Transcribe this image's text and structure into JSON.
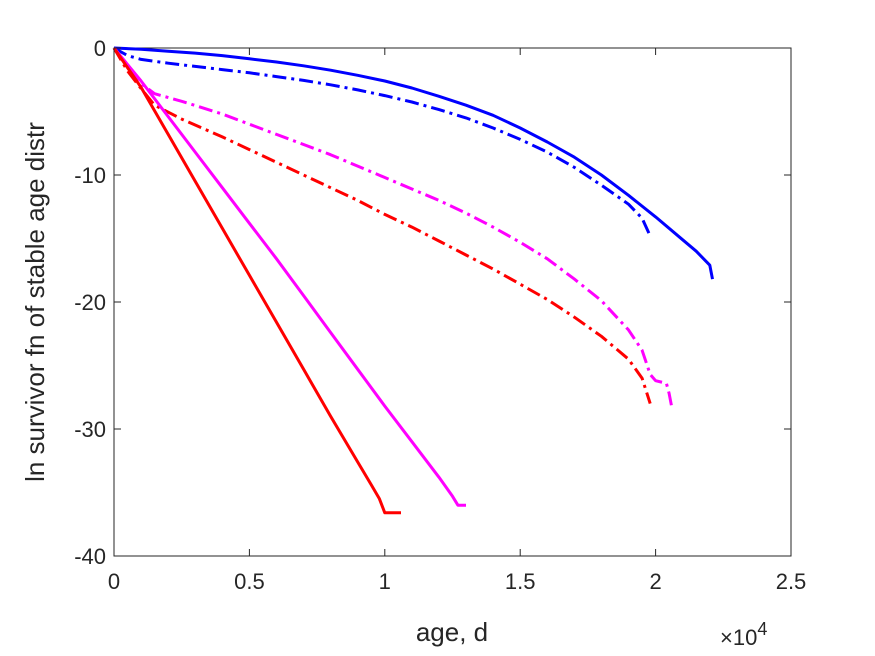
{
  "chart_data": {
    "type": "line",
    "xlabel": "age, d",
    "ylabel": "ln survivor fn of stable age distr",
    "x_multiplier_label": {
      "base": "×10",
      "exp": "4"
    },
    "xlim": [
      0,
      25000
    ],
    "ylim": [
      -40,
      0
    ],
    "x_ticks": [
      0,
      5000,
      10000,
      15000,
      20000,
      25000
    ],
    "x_tick_labels": [
      "0",
      "0.5",
      "1",
      "1.5",
      "2",
      "2.5"
    ],
    "y_ticks": [
      -40,
      -30,
      -20,
      -10,
      0
    ],
    "y_tick_labels": [
      "-40",
      "-30",
      "-20",
      "-10",
      "0"
    ],
    "grid": false,
    "series": [
      {
        "color": "#0000ff",
        "style": "solid",
        "x": [
          0,
          1000,
          2000,
          3000,
          4000,
          5000,
          6000,
          7000,
          8000,
          9000,
          10000,
          11000,
          12000,
          13000,
          14000,
          15000,
          16000,
          17000,
          18000,
          19000,
          20000,
          21000,
          21500,
          22000,
          22100
        ],
        "y": [
          0,
          -0.1,
          -0.25,
          -0.4,
          -0.6,
          -0.85,
          -1.1,
          -1.4,
          -1.75,
          -2.15,
          -2.6,
          -3.15,
          -3.8,
          -4.5,
          -5.3,
          -6.3,
          -7.4,
          -8.6,
          -10.0,
          -11.6,
          -13.3,
          -15.1,
          -16.0,
          -17.1,
          -18.2
        ]
      },
      {
        "color": "#0000ff",
        "style": "dashdot",
        "x": [
          0,
          500,
          1000,
          2000,
          3000,
          4000,
          5000,
          6000,
          7000,
          8000,
          9000,
          10000,
          11000,
          12000,
          13000,
          14000,
          15000,
          16000,
          17000,
          18000,
          19000,
          19500,
          19800
        ],
        "y": [
          0,
          -0.6,
          -0.9,
          -1.2,
          -1.45,
          -1.7,
          -1.95,
          -2.25,
          -2.55,
          -2.9,
          -3.3,
          -3.75,
          -4.25,
          -4.85,
          -5.5,
          -6.3,
          -7.2,
          -8.2,
          -9.4,
          -10.8,
          -12.3,
          -13.4,
          -14.8
        ]
      },
      {
        "color": "#ff00ff",
        "style": "dashdot",
        "x": [
          0,
          500,
          1000,
          1500,
          2500,
          4000,
          5000,
          6000,
          7000,
          8000,
          9000,
          10000,
          11000,
          12000,
          13000,
          14000,
          15000,
          16000,
          17000,
          18000,
          19000,
          19500,
          19800,
          20000,
          20400,
          20500,
          20600
        ],
        "y": [
          0,
          -1.6,
          -2.8,
          -3.6,
          -4.2,
          -5.2,
          -6.0,
          -6.8,
          -7.6,
          -8.4,
          -9.3,
          -10.2,
          -11.1,
          -12.0,
          -13.0,
          -14.1,
          -15.3,
          -16.6,
          -18.2,
          -19.9,
          -22.2,
          -23.8,
          -25.7,
          -26.2,
          -26.4,
          -27.2,
          -28.3
        ]
      },
      {
        "color": "#ff0000",
        "style": "dashdot",
        "x": [
          0,
          500,
          1000,
          1500,
          2500,
          4000,
          5000,
          6000,
          7000,
          8000,
          9000,
          10000,
          11000,
          12000,
          13000,
          14000,
          15000,
          16000,
          17000,
          18000,
          19000,
          19500,
          19800
        ],
        "y": [
          0,
          -1.8,
          -3.2,
          -4.5,
          -5.6,
          -7.0,
          -8.0,
          -9.0,
          -10.0,
          -11.0,
          -12.0,
          -13.1,
          -14.1,
          -15.2,
          -16.3,
          -17.4,
          -18.6,
          -19.8,
          -21.2,
          -22.7,
          -24.5,
          -26.0,
          -28.0
        ]
      },
      {
        "color": "#ff00ff",
        "style": "solid",
        "x": [
          0,
          1000,
          2000,
          3000,
          4000,
          5000,
          6000,
          7000,
          8000,
          9000,
          10000,
          11000,
          12000,
          12500,
          12700,
          13000
        ],
        "y": [
          0,
          -2.6,
          -5.4,
          -8.2,
          -11.0,
          -13.8,
          -16.6,
          -19.5,
          -22.4,
          -25.3,
          -28.2,
          -31.0,
          -33.8,
          -35.3,
          -36.0,
          -36.0
        ]
      },
      {
        "color": "#ff0000",
        "style": "solid",
        "x": [
          0,
          1000,
          2000,
          3000,
          4000,
          5000,
          6000,
          7000,
          8000,
          9000,
          9500,
          9800,
          10000,
          10200,
          10600
        ],
        "y": [
          0,
          -3.1,
          -6.8,
          -10.5,
          -14.2,
          -17.9,
          -21.6,
          -25.3,
          -29.0,
          -32.6,
          -34.4,
          -35.5,
          -36.6,
          -36.6,
          -36.6
        ]
      }
    ]
  }
}
